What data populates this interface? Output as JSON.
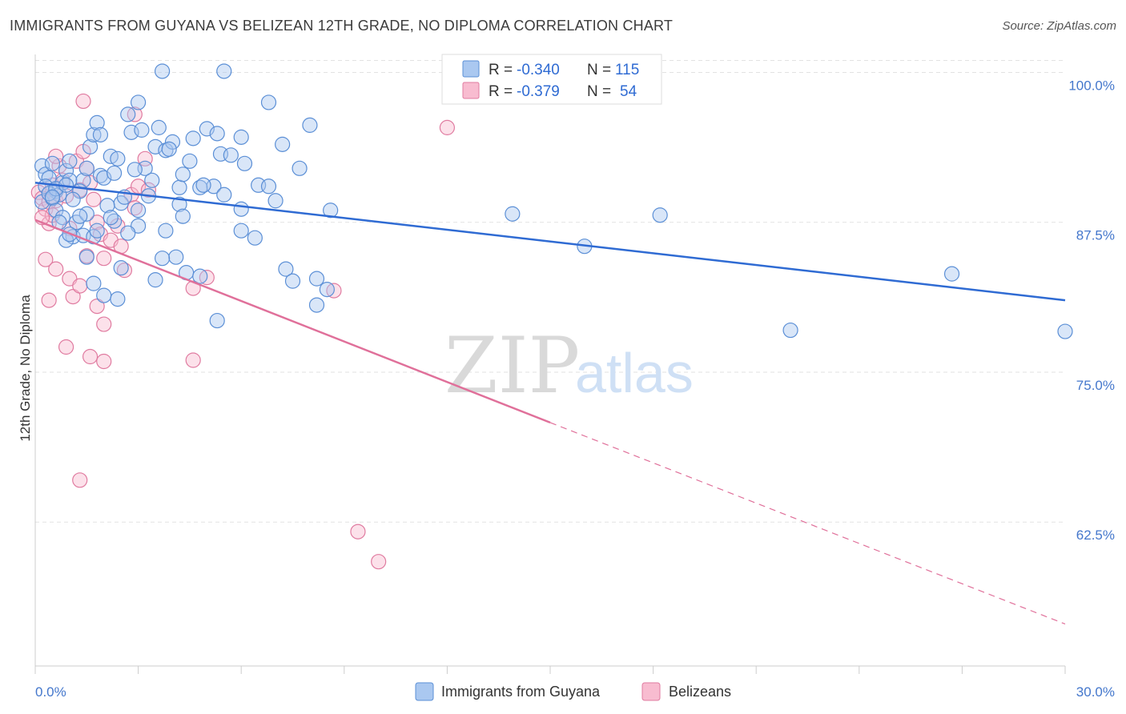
{
  "title": "IMMIGRANTS FROM GUYANA VS BELIZEAN 12TH GRADE, NO DIPLOMA CORRELATION CHART",
  "source": "Source: ZipAtlas.com",
  "watermark": {
    "zip": "ZIP",
    "atlas": "atlas"
  },
  "legend": {
    "r_label": "R =",
    "n_label": "N =",
    "rows": [
      {
        "r": "-0.340",
        "n": "115",
        "color": "#aac8f0",
        "stroke": "#5b8fd6"
      },
      {
        "r": "-0.379",
        "n": "54",
        "color": "#f8bcd0",
        "stroke": "#e07ba0"
      }
    ]
  },
  "chart_data": {
    "type": "scatter",
    "title": "IMMIGRANTS FROM GUYANA VS BELIZEAN 12TH GRADE, NO DIPLOMA CORRELATION CHART",
    "xlabel": "",
    "ylabel": "12th Grade, No Diploma",
    "xlim": [
      0,
      30
    ],
    "ylim": [
      50.5,
      101.5
    ],
    "x_tick_labels": [
      "0.0%",
      "30.0%"
    ],
    "y_ticks": [
      62.5,
      75.0,
      87.5,
      100.0
    ],
    "y_tick_labels": [
      "62.5%",
      "75.0%",
      "87.5%",
      "100.0%"
    ],
    "grid": "horizontal-dashed",
    "legend_position": "top-center",
    "series": [
      {
        "name": "Immigrants from Guyana",
        "color": "#aac8f0",
        "stroke": "#5b8fd6",
        "line_color": "#2f6bd3",
        "trend": {
          "x": [
            0,
            30
          ],
          "y": [
            90.8,
            81.0
          ]
        },
        "points": [
          [
            0.2,
            92.2
          ],
          [
            0.3,
            91.5
          ],
          [
            0.4,
            91.2
          ],
          [
            0.5,
            92.4
          ],
          [
            0.6,
            90.1
          ],
          [
            0.7,
            89.8
          ],
          [
            0.3,
            90.5
          ],
          [
            0.2,
            89.2
          ],
          [
            0.8,
            90.8
          ],
          [
            0.5,
            89.5
          ],
          [
            0.9,
            91.8
          ],
          [
            1.0,
            91.0
          ],
          [
            0.6,
            88.5
          ],
          [
            0.8,
            87.9
          ],
          [
            1.1,
            86.3
          ],
          [
            1.2,
            87.5
          ],
          [
            0.9,
            86.0
          ],
          [
            1.4,
            91.0
          ],
          [
            1.5,
            92.0
          ],
          [
            1.6,
            93.8
          ],
          [
            1.7,
            94.8
          ],
          [
            1.8,
            95.8
          ],
          [
            1.9,
            94.8
          ],
          [
            1.9,
            91.4
          ],
          [
            2.2,
            93.0
          ],
          [
            2.0,
            91.2
          ],
          [
            2.4,
            92.8
          ],
          [
            2.5,
            89.1
          ],
          [
            2.7,
            96.5
          ],
          [
            2.8,
            95.0
          ],
          [
            3.0,
            97.5
          ],
          [
            3.1,
            95.2
          ],
          [
            3.2,
            92.0
          ],
          [
            3.4,
            91.0
          ],
          [
            3.5,
            93.8
          ],
          [
            3.6,
            95.4
          ],
          [
            3.8,
            93.5
          ],
          [
            4.0,
            94.2
          ],
          [
            4.2,
            90.4
          ],
          [
            4.3,
            91.5
          ],
          [
            3.7,
            100.1
          ],
          [
            5.5,
            100.1
          ],
          [
            6.8,
            97.5
          ],
          [
            8.0,
            95.6
          ],
          [
            4.6,
            94.5
          ],
          [
            5.0,
            95.3
          ],
          [
            5.3,
            94.9
          ],
          [
            5.4,
            93.2
          ],
          [
            6.0,
            94.6
          ],
          [
            6.5,
            90.6
          ],
          [
            7.0,
            89.3
          ],
          [
            7.7,
            92.0
          ],
          [
            6.8,
            90.5
          ],
          [
            5.2,
            90.5
          ],
          [
            4.8,
            90.4
          ],
          [
            5.5,
            89.8
          ],
          [
            4.2,
            89.0
          ],
          [
            3.3,
            89.7
          ],
          [
            3.0,
            88.5
          ],
          [
            2.6,
            89.6
          ],
          [
            2.1,
            88.9
          ],
          [
            1.5,
            88.2
          ],
          [
            1.3,
            88.0
          ],
          [
            0.7,
            87.5
          ],
          [
            1.0,
            86.5
          ],
          [
            1.4,
            86.4
          ],
          [
            1.7,
            86.3
          ],
          [
            2.3,
            87.6
          ],
          [
            3.0,
            87.2
          ],
          [
            3.8,
            86.8
          ],
          [
            4.1,
            84.6
          ],
          [
            3.7,
            84.5
          ],
          [
            2.5,
            83.7
          ],
          [
            1.5,
            84.6
          ],
          [
            4.4,
            83.3
          ],
          [
            4.8,
            83.0
          ],
          [
            3.5,
            82.7
          ],
          [
            1.7,
            82.4
          ],
          [
            2.4,
            81.1
          ],
          [
            2.0,
            81.4
          ],
          [
            5.3,
            79.3
          ],
          [
            7.3,
            83.6
          ],
          [
            7.5,
            82.6
          ],
          [
            8.2,
            82.8
          ],
          [
            8.5,
            81.9
          ],
          [
            8.2,
            80.6
          ],
          [
            6.0,
            86.8
          ],
          [
            6.4,
            86.2
          ],
          [
            8.6,
            88.5
          ],
          [
            6.0,
            88.6
          ],
          [
            4.3,
            88.0
          ],
          [
            13.9,
            88.2
          ],
          [
            18.2,
            88.1
          ],
          [
            16.0,
            85.5
          ],
          [
            26.7,
            83.2
          ],
          [
            22.0,
            78.5
          ],
          [
            30.0,
            78.4
          ],
          [
            1.0,
            92.6
          ],
          [
            0.4,
            89.9
          ],
          [
            0.6,
            90.3
          ],
          [
            1.3,
            90.1
          ],
          [
            2.3,
            91.6
          ],
          [
            2.9,
            91.9
          ],
          [
            3.9,
            93.6
          ],
          [
            4.9,
            90.6
          ],
          [
            5.7,
            93.1
          ],
          [
            6.1,
            92.4
          ],
          [
            7.2,
            94.0
          ],
          [
            4.5,
            92.6
          ],
          [
            2.7,
            86.6
          ],
          [
            0.5,
            89.6
          ],
          [
            0.9,
            90.6
          ],
          [
            1.1,
            89.4
          ],
          [
            1.8,
            86.8
          ],
          [
            2.2,
            87.9
          ]
        ]
      },
      {
        "name": "Belizeans",
        "color": "#f8bcd0",
        "stroke": "#e07ba0",
        "line_color": "#e0709a",
        "trend": {
          "x": [
            0,
            15
          ],
          "y": [
            87.7,
            70.8
          ]
        },
        "trend_extension": {
          "x": [
            15,
            30
          ],
          "y": [
            70.8,
            54.0
          ]
        },
        "points": [
          [
            0.1,
            90.0
          ],
          [
            0.2,
            89.5
          ],
          [
            0.3,
            88.6
          ],
          [
            0.4,
            87.4
          ],
          [
            0.5,
            90.6
          ],
          [
            0.6,
            89.3
          ],
          [
            0.7,
            92.2
          ],
          [
            0.8,
            91.0
          ],
          [
            0.9,
            89.7
          ],
          [
            1.0,
            87.0
          ],
          [
            0.6,
            93.0
          ],
          [
            1.2,
            92.6
          ],
          [
            1.3,
            90.2
          ],
          [
            1.4,
            93.4
          ],
          [
            1.5,
            92.0
          ],
          [
            1.6,
            90.8
          ],
          [
            1.7,
            89.4
          ],
          [
            1.8,
            87.5
          ],
          [
            1.9,
            86.5
          ],
          [
            2.0,
            84.5
          ],
          [
            2.2,
            86.0
          ],
          [
            2.4,
            87.2
          ],
          [
            2.5,
            85.5
          ],
          [
            2.8,
            89.8
          ],
          [
            3.0,
            90.5
          ],
          [
            3.2,
            92.8
          ],
          [
            3.3,
            90.2
          ],
          [
            2.9,
            96.5
          ],
          [
            1.4,
            97.6
          ],
          [
            12.0,
            95.4
          ],
          [
            0.3,
            84.4
          ],
          [
            0.6,
            83.6
          ],
          [
            1.0,
            82.8
          ],
          [
            1.1,
            81.3
          ],
          [
            0.4,
            81.0
          ],
          [
            1.8,
            80.5
          ],
          [
            2.0,
            79.0
          ],
          [
            1.6,
            76.3
          ],
          [
            2.0,
            75.9
          ],
          [
            0.9,
            77.1
          ],
          [
            4.6,
            76.0
          ],
          [
            4.6,
            82.0
          ],
          [
            5.0,
            82.9
          ],
          [
            8.7,
            81.8
          ],
          [
            2.9,
            88.7
          ],
          [
            0.4,
            89.2
          ],
          [
            0.5,
            88.1
          ],
          [
            1.5,
            84.7
          ],
          [
            2.6,
            83.5
          ],
          [
            1.3,
            82.2
          ],
          [
            1.3,
            66.0
          ],
          [
            9.4,
            61.7
          ],
          [
            10.0,
            59.2
          ],
          [
            0.2,
            87.9
          ]
        ]
      }
    ]
  },
  "bottom_legend": [
    {
      "label": "Immigrants from Guyana",
      "color": "#aac8f0",
      "stroke": "#5b8fd6"
    },
    {
      "label": "Belizeans",
      "color": "#f8bcd0",
      "stroke": "#e07ba0"
    }
  ]
}
